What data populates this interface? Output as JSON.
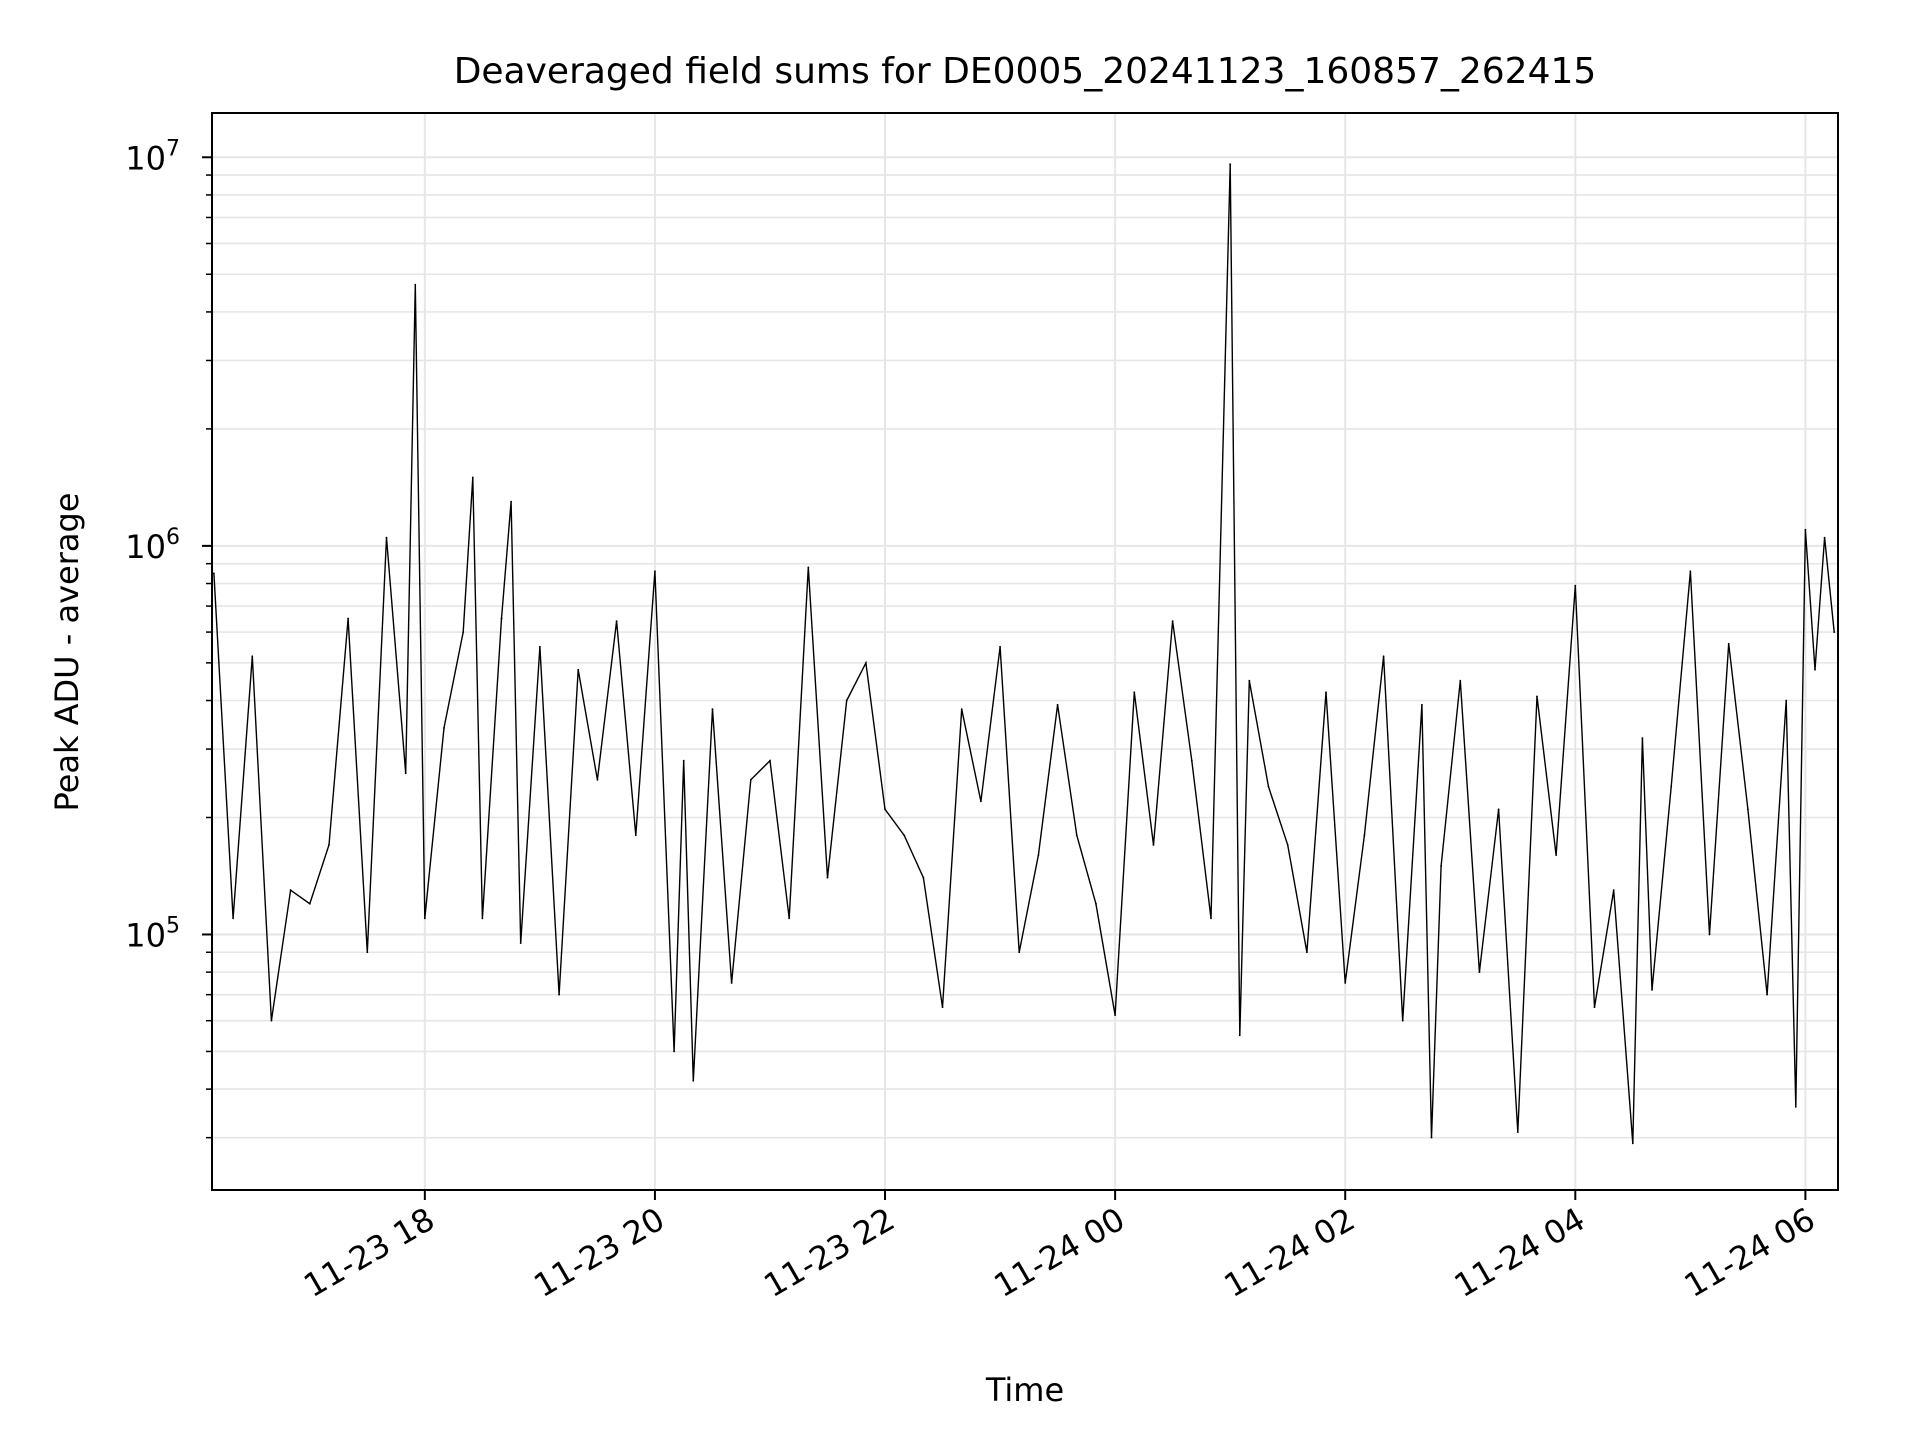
{
  "chart_data": {
    "type": "line",
    "title": "Deaveraged field sums for DE0005_20241123_160857_262415",
    "xlabel": "Time",
    "ylabel": "Peak ADU - average",
    "xlim": [
      "2024-11-23T16:09",
      "2024-11-24T06:17"
    ],
    "ylim": [
      22000,
      13000000
    ],
    "yscale": "log",
    "grid": true,
    "x_ticks": [
      "11-23 18",
      "11-23 20",
      "11-23 22",
      "11-24 00",
      "11-24 02",
      "11-24 04",
      "11-24 06"
    ],
    "y_ticks": [
      "10^5",
      "10^6",
      "10^7"
    ],
    "line_color": "#000000",
    "series": [
      {
        "x": [
          "2024-11-23T16:10",
          "2024-11-23T16:20",
          "2024-11-23T16:30",
          "2024-11-23T16:40",
          "2024-11-23T16:50",
          "2024-11-23T17:00",
          "2024-11-23T17:10",
          "2024-11-23T17:20",
          "2024-11-23T17:30",
          "2024-11-23T17:40",
          "2024-11-23T17:50",
          "2024-11-23T17:55",
          "2024-11-23T18:00",
          "2024-11-23T18:10",
          "2024-11-23T18:20",
          "2024-11-23T18:25",
          "2024-11-23T18:30",
          "2024-11-23T18:40",
          "2024-11-23T18:45",
          "2024-11-23T18:50",
          "2024-11-23T19:00",
          "2024-11-23T19:10",
          "2024-11-23T19:20",
          "2024-11-23T19:30",
          "2024-11-23T19:40",
          "2024-11-23T19:50",
          "2024-11-23T20:00",
          "2024-11-23T20:10",
          "2024-11-23T20:15",
          "2024-11-23T20:20",
          "2024-11-23T20:30",
          "2024-11-23T20:40",
          "2024-11-23T20:50",
          "2024-11-23T21:00",
          "2024-11-23T21:10",
          "2024-11-23T21:20",
          "2024-11-23T21:30",
          "2024-11-23T21:40",
          "2024-11-23T21:50",
          "2024-11-23T22:00",
          "2024-11-23T22:10",
          "2024-11-23T22:20",
          "2024-11-23T22:30",
          "2024-11-23T22:40",
          "2024-11-23T22:50",
          "2024-11-23T23:00",
          "2024-11-23T23:10",
          "2024-11-23T23:20",
          "2024-11-23T23:30",
          "2024-11-23T23:40",
          "2024-11-23T23:50",
          "2024-11-24T00:00",
          "2024-11-24T00:10",
          "2024-11-24T00:20",
          "2024-11-24T00:30",
          "2024-11-24T00:40",
          "2024-11-24T00:50",
          "2024-11-24T01:00",
          "2024-11-24T01:05",
          "2024-11-24T01:10",
          "2024-11-24T01:20",
          "2024-11-24T01:30",
          "2024-11-24T01:40",
          "2024-11-24T01:50",
          "2024-11-24T02:00",
          "2024-11-24T02:10",
          "2024-11-24T02:20",
          "2024-11-24T02:30",
          "2024-11-24T02:40",
          "2024-11-24T02:45",
          "2024-11-24T02:50",
          "2024-11-24T03:00",
          "2024-11-24T03:10",
          "2024-11-24T03:20",
          "2024-11-24T03:30",
          "2024-11-24T03:40",
          "2024-11-24T03:50",
          "2024-11-24T04:00",
          "2024-11-24T04:10",
          "2024-11-24T04:20",
          "2024-11-24T04:30",
          "2024-11-24T04:35",
          "2024-11-24T04:40",
          "2024-11-24T04:50",
          "2024-11-24T05:00",
          "2024-11-24T05:10",
          "2024-11-24T05:20",
          "2024-11-24T05:30",
          "2024-11-24T05:40",
          "2024-11-24T05:50",
          "2024-11-24T05:55",
          "2024-11-24T06:00",
          "2024-11-24T06:05",
          "2024-11-24T06:10",
          "2024-11-24T06:15"
        ],
        "y": [
          850000,
          110000,
          520000,
          60000,
          130000,
          120000,
          170000,
          650000,
          90000,
          1050000,
          260000,
          4700000,
          110000,
          340000,
          600000,
          1500000,
          110000,
          650000,
          1300000,
          95000,
          550000,
          70000,
          480000,
          250000,
          640000,
          180000,
          860000,
          50000,
          280000,
          42000,
          380000,
          75000,
          250000,
          280000,
          110000,
          880000,
          140000,
          400000,
          500000,
          210000,
          180000,
          140000,
          65000,
          380000,
          220000,
          550000,
          90000,
          160000,
          390000,
          180000,
          120000,
          62000,
          420000,
          170000,
          640000,
          280000,
          110000,
          9600000,
          55000,
          450000,
          240000,
          170000,
          90000,
          420000,
          75000,
          180000,
          520000,
          60000,
          390000,
          30000,
          150000,
          450000,
          80000,
          210000,
          31000,
          410000,
          160000,
          790000,
          65000,
          130000,
          29000,
          320000,
          72000,
          240000,
          860000,
          100000,
          560000,
          210000,
          70000,
          400000,
          36000,
          1100000,
          480000,
          1050000,
          600000
        ]
      }
    ]
  }
}
